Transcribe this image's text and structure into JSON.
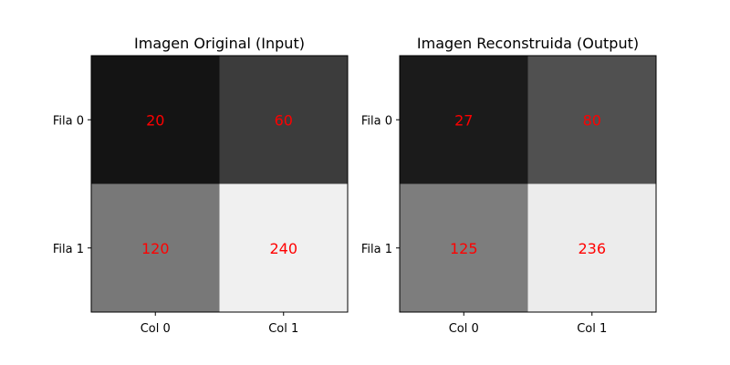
{
  "chart_data": [
    {
      "type": "heatmap",
      "title": "Imagen Original (Input)",
      "row_labels": [
        "Fila 0",
        "Fila 1"
      ],
      "col_labels": [
        "Col 0",
        "Col 1"
      ],
      "values": [
        [
          20,
          60
        ],
        [
          120,
          240
        ]
      ],
      "colormap": "gray",
      "vmin": 0,
      "vmax": 255,
      "annotation_color": "#ff0000"
    },
    {
      "type": "heatmap",
      "title": "Imagen Reconstruida (Output)",
      "row_labels": [
        "Fila 0",
        "Fila 1"
      ],
      "col_labels": [
        "Col 0",
        "Col 1"
      ],
      "values": [
        [
          27,
          80
        ],
        [
          125,
          236
        ]
      ],
      "colormap": "gray",
      "vmin": 0,
      "vmax": 255,
      "annotation_color": "#ff0000"
    }
  ]
}
